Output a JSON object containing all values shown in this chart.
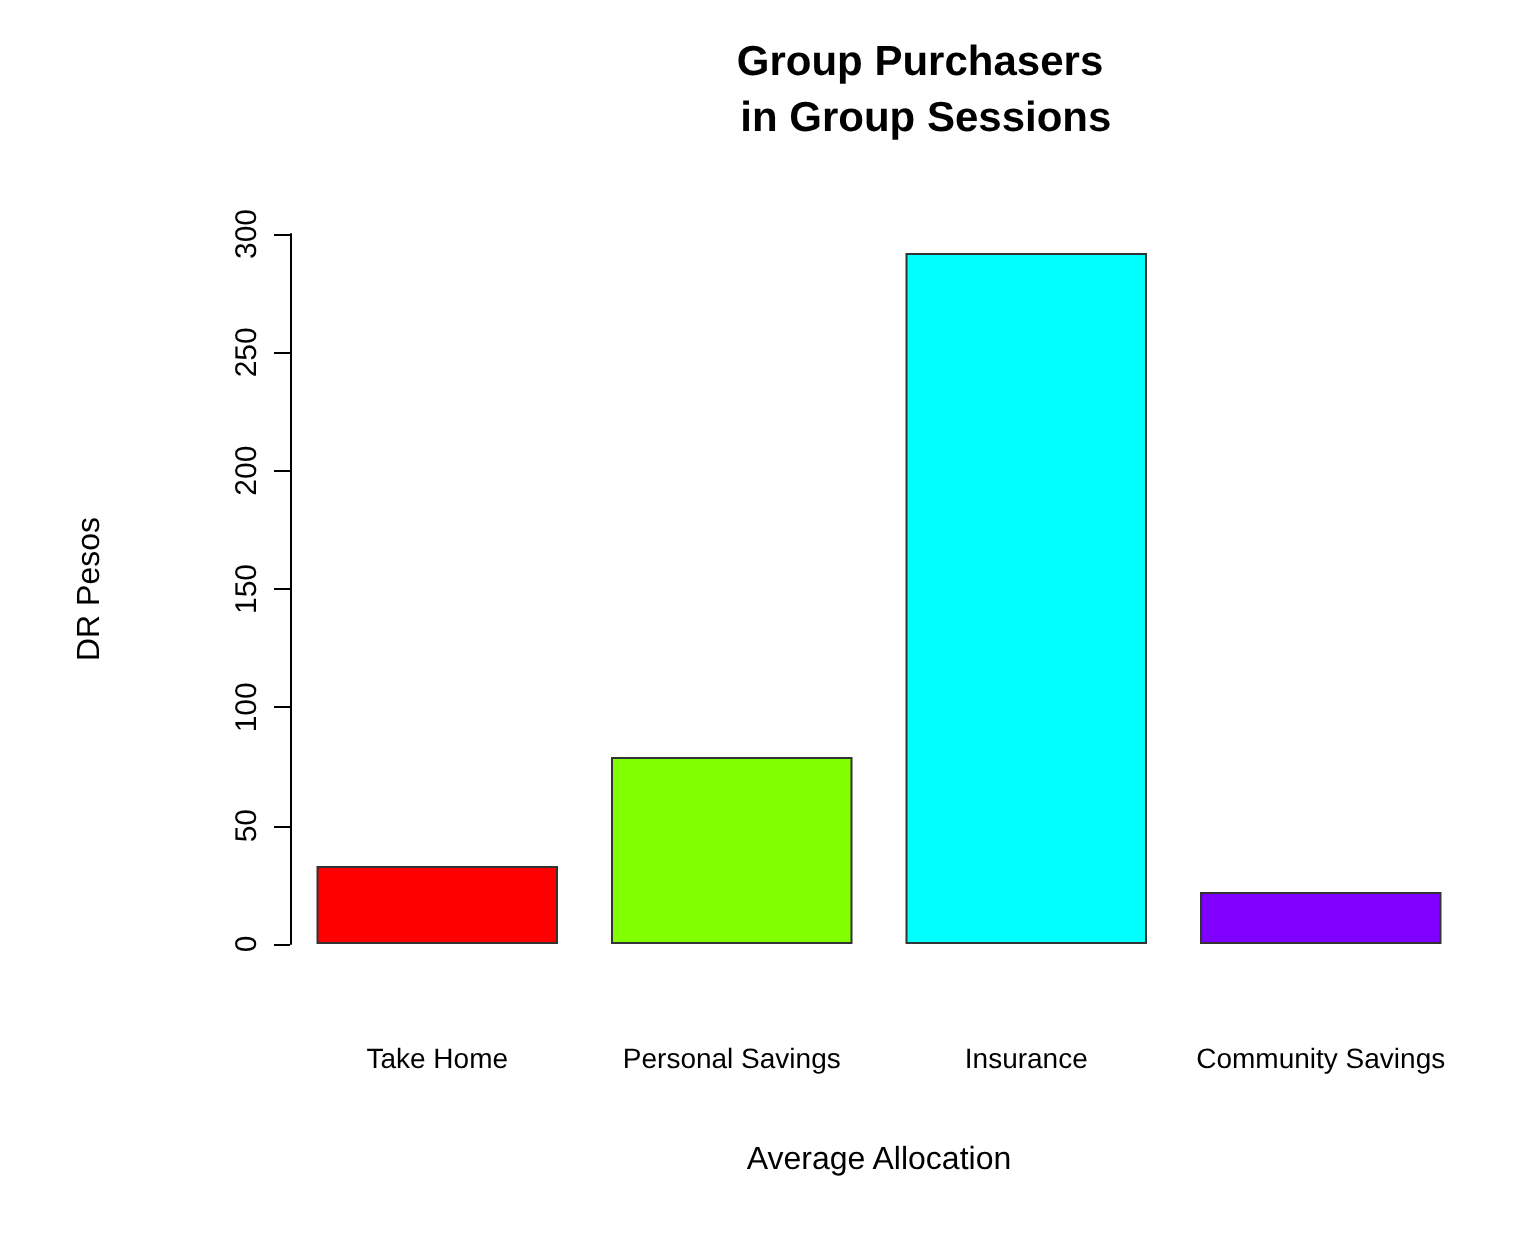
{
  "chart_data": {
    "type": "bar",
    "title": "Group Purchasers\n in Group Sessions",
    "xlabel": "Average Allocation",
    "ylabel": "DR Pesos",
    "categories": [
      "Take Home",
      "Personal Savings",
      "Insurance",
      "Community Savings"
    ],
    "values": [
      33,
      79,
      292,
      22
    ],
    "colors": [
      "#ff0000",
      "#80ff00",
      "#00ffff",
      "#8000ff"
    ],
    "ylim": [
      0,
      300
    ],
    "yticks": [
      0,
      50,
      100,
      150,
      200,
      250,
      300
    ],
    "grid": false
  }
}
